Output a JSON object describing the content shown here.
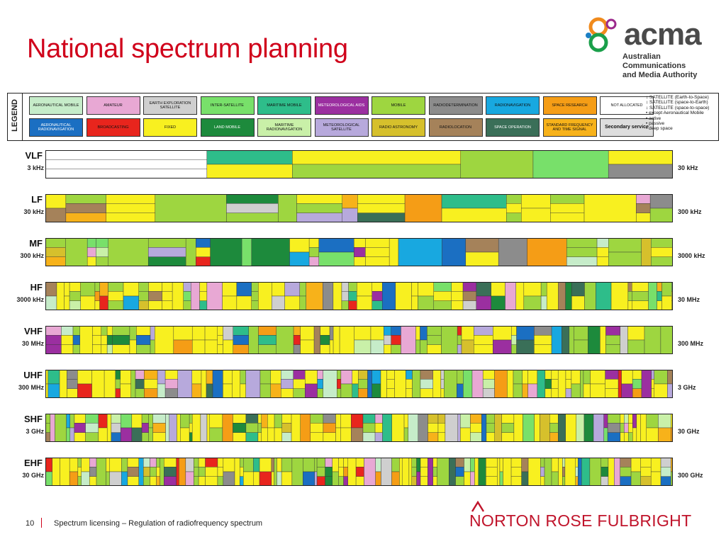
{
  "slide": {
    "title": "National spectrum planning",
    "page_number": "10",
    "footer_text": "Spectrum licensing – Regulation of radiofrequency spectrum"
  },
  "acma_logo": {
    "wordmark": "acma",
    "line1": "Australian",
    "line2": "Communications",
    "line3": "and Media Authority"
  },
  "norton_logo": {
    "text": "NORTON ROSE FULBRIGHT"
  },
  "legend": {
    "tag": "LEGEND",
    "services": [
      {
        "label": "AERONAUTICAL MOBILE",
        "color": "#c6ecc9"
      },
      {
        "label": "AMATEUR",
        "color": "#e8a8d4"
      },
      {
        "label": "EARTH EXPLORATION SATELLITE",
        "color": "#cfcfcf"
      },
      {
        "label": "INTER-SATELLITE",
        "color": "#78e06a"
      },
      {
        "label": "MARITIME MOBILE",
        "color": "#2ebd8a"
      },
      {
        "label": "METEOROLOGICAL AIDS",
        "color": "#9b2fa0"
      },
      {
        "label": "MOBILE",
        "color": "#9ed640"
      },
      {
        "label": "RADIODETERMINATION",
        "color": "#8c8c8c"
      },
      {
        "label": "RADIONAVIGATION",
        "color": "#18a8e0"
      },
      {
        "label": "SPACE RESEARCH",
        "color": "#f59d16"
      },
      {
        "label": "NOT ALLOCATED",
        "color": "#ffffff"
      },
      {
        "label": "AERONAUTICAL RADIONAVIGATION",
        "color": "#1b6fc2"
      },
      {
        "label": "BROADCASTING",
        "color": "#e8251d"
      },
      {
        "label": "FIXED",
        "color": "#f8f020"
      },
      {
        "label": "LAND MOBILE",
        "color": "#1d8a3c"
      },
      {
        "label": "MARITIME RADIONAVIGATION",
        "color": "#c9f0a8"
      },
      {
        "label": "METEOROLOGICAL SATELLITE",
        "color": "#b7a9dc"
      },
      {
        "label": "RADIO ASTRONOMY",
        "color": "#d6c02c"
      },
      {
        "label": "RADIOLOCATION",
        "color": "#a5825a"
      },
      {
        "label": "SPACE OPERATION",
        "color": "#3a6f58"
      },
      {
        "label": "STANDARD FREQUENCY AND TIME SIGNAL",
        "color": "#f7b21a"
      },
      {
        "label": "Secondary service",
        "color": "#dddddd"
      }
    ],
    "key": [
      "SATELLITE (Earth-to-Space)",
      "SATELLITE (space-to-Earth)",
      "SATELLITE (space-to-space)",
      "except Aeronautical Mobile",
      "active",
      "passive",
      "deep space"
    ]
  },
  "bands": [
    {
      "name": "VLF",
      "low": "3 kHz",
      "high": "30 kHz"
    },
    {
      "name": "LF",
      "low": "30 kHz",
      "high": "300 kHz"
    },
    {
      "name": "MF",
      "low": "300 kHz",
      "high": "3000 kHz"
    },
    {
      "name": "HF",
      "low": "3000 kHz",
      "high": "30 MHz"
    },
    {
      "name": "VHF",
      "low": "30 MHz",
      "high": "300 MHz"
    },
    {
      "name": "UHF",
      "low": "300 MHz",
      "high": "3 GHz"
    },
    {
      "name": "SHF",
      "low": "3 GHz",
      "high": "30 GHz"
    },
    {
      "name": "EHF",
      "low": "30 GHz",
      "high": "300 GHz"
    }
  ]
}
